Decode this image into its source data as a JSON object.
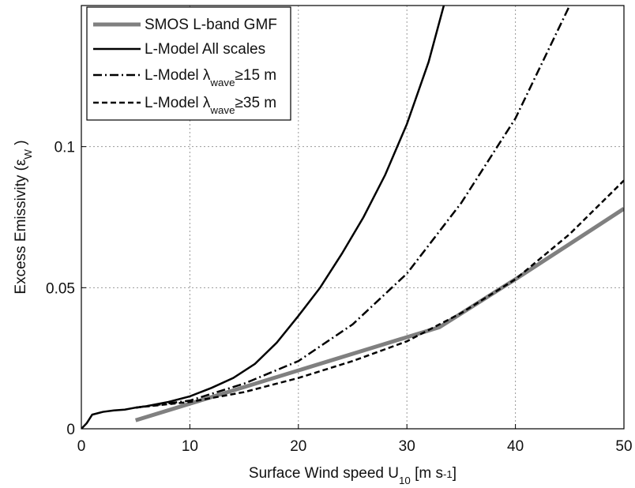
{
  "chart_data": {
    "type": "line",
    "xlabel": "Surface Wind speed U10 [m s-1]",
    "xlabel_sub": "10",
    "xlabel_sup": "-1",
    "ylabel": "Excess Emissivity (εW )",
    "ylabel_sub": "W",
    "xlim": [
      0,
      50
    ],
    "xticks": [
      0,
      10,
      20,
      30,
      40,
      50
    ],
    "ylim": [
      0,
      0.15
    ],
    "yticks": [
      0,
      0.05,
      0.1
    ],
    "grid": true,
    "legend": "upper left",
    "series": [
      {
        "name": "SMOS L-band GMF",
        "color": "#808080",
        "linestyle": "solid",
        "width": 5,
        "x": [
          5,
          33,
          40,
          50
        ],
        "values": [
          0.003,
          0.036,
          0.053,
          0.078
        ]
      },
      {
        "name": "L-Model All scales",
        "color": "#000000",
        "linestyle": "solid",
        "width": 2.5,
        "x": [
          0,
          0.5,
          1,
          2,
          3,
          4,
          5,
          6,
          8,
          10,
          12,
          14,
          16,
          18,
          20,
          22,
          24,
          26,
          28,
          30,
          32,
          33.4
        ],
        "values": [
          0,
          0.002,
          0.005,
          0.006,
          0.0065,
          0.0068,
          0.0075,
          0.008,
          0.0095,
          0.0115,
          0.0145,
          0.018,
          0.023,
          0.0305,
          0.04,
          0.05,
          0.062,
          0.075,
          0.09,
          0.108,
          0.13,
          0.15
        ]
      },
      {
        "name": "L-Model λwave≥15 m",
        "name_sub": "wave",
        "color": "#000000",
        "linestyle": "dashdot",
        "width": 2.5,
        "x": [
          5,
          10,
          15,
          20,
          25,
          30,
          35,
          40,
          45
        ],
        "values": [
          0.0075,
          0.01,
          0.016,
          0.024,
          0.037,
          0.055,
          0.08,
          0.11,
          0.15
        ]
      },
      {
        "name": "L-Model λwave≥35 m",
        "name_sub": "wave",
        "color": "#000000",
        "linestyle": "dashed",
        "width": 2.5,
        "x": [
          5,
          10,
          15,
          20,
          25,
          30,
          33,
          35,
          40,
          45,
          50
        ],
        "values": [
          0.0075,
          0.0095,
          0.013,
          0.018,
          0.024,
          0.031,
          0.037,
          0.041,
          0.053,
          0.069,
          0.088
        ]
      }
    ]
  }
}
